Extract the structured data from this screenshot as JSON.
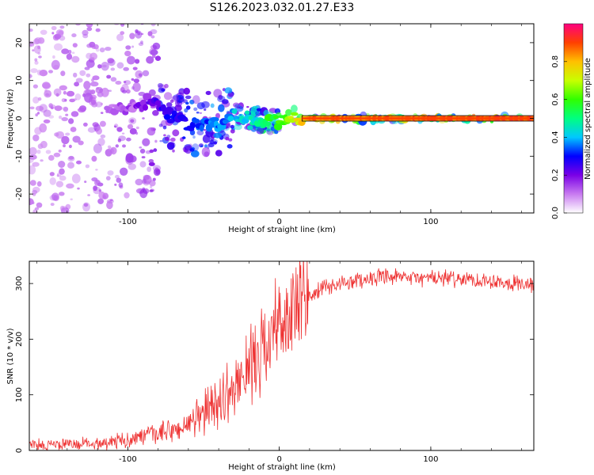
{
  "title": "S126.2023.032.01.27.E33",
  "chart_data": [
    {
      "type": "heatmap",
      "xlabel": "Height of straight line (km)",
      "ylabel": "Frequency (Hz)",
      "xlim": [
        -165,
        168
      ],
      "ylim": [
        -25,
        25
      ],
      "xticks": [
        -100,
        0,
        100
      ],
      "yticks": [
        -20,
        -10,
        0,
        10,
        20
      ],
      "colorbar": {
        "label": "Normalized spectral amplitude",
        "range": [
          0,
          1
        ],
        "ticks": [
          0.0,
          0.2,
          0.4,
          0.6,
          0.8
        ],
        "colors": [
          "#ffffff",
          "#c87af0",
          "#7a00e6",
          "#0000ff",
          "#00c8ff",
          "#00ff80",
          "#30ff00",
          "#c8ff00",
          "#ffc000",
          "#ff4000",
          "#ff0080"
        ]
      },
      "ridge": {
        "x": [
          -165,
          -150,
          -130,
          -110,
          -95,
          -85,
          -80,
          -70,
          -60,
          -50,
          -40,
          -30,
          -20,
          -15,
          -10,
          0,
          10,
          20,
          168
        ],
        "freq": [
          0,
          1,
          0,
          2,
          3,
          5,
          3,
          0,
          -1.5,
          -1,
          -2,
          1,
          0,
          0,
          -0.8,
          -0.8,
          0,
          0,
          0
        ],
        "amplitude": [
          0.05,
          0.07,
          0.1,
          0.12,
          0.15,
          0.2,
          0.25,
          0.28,
          0.3,
          0.32,
          0.35,
          0.4,
          0.45,
          0.45,
          0.55,
          0.6,
          0.7,
          0.85,
          0.9
        ]
      }
    },
    {
      "type": "line",
      "xlabel": "Height of straight line (km)",
      "ylabel": "SNR (10 * v/v)",
      "xlim": [
        -165,
        168
      ],
      "ylim": [
        0,
        340
      ],
      "xticks": [
        -100,
        0,
        100
      ],
      "yticks": [
        0,
        100,
        200,
        300
      ],
      "color": "#ee3333",
      "x": [
        -165,
        -150,
        -130,
        -110,
        -100,
        -90,
        -80,
        -70,
        -60,
        -50,
        -45,
        -40,
        -35,
        -30,
        -25,
        -20,
        -15,
        -10,
        -5,
        0,
        5,
        10,
        15,
        20,
        25,
        30,
        40,
        50,
        60,
        70,
        80,
        100,
        120,
        140,
        160,
        168
      ],
      "y": [
        10,
        10,
        12,
        15,
        20,
        25,
        30,
        35,
        45,
        65,
        80,
        90,
        100,
        110,
        130,
        150,
        170,
        190,
        210,
        230,
        240,
        250,
        262,
        275,
        285,
        292,
        300,
        305,
        310,
        310,
        310,
        310,
        308,
        305,
        300,
        295
      ]
    }
  ]
}
